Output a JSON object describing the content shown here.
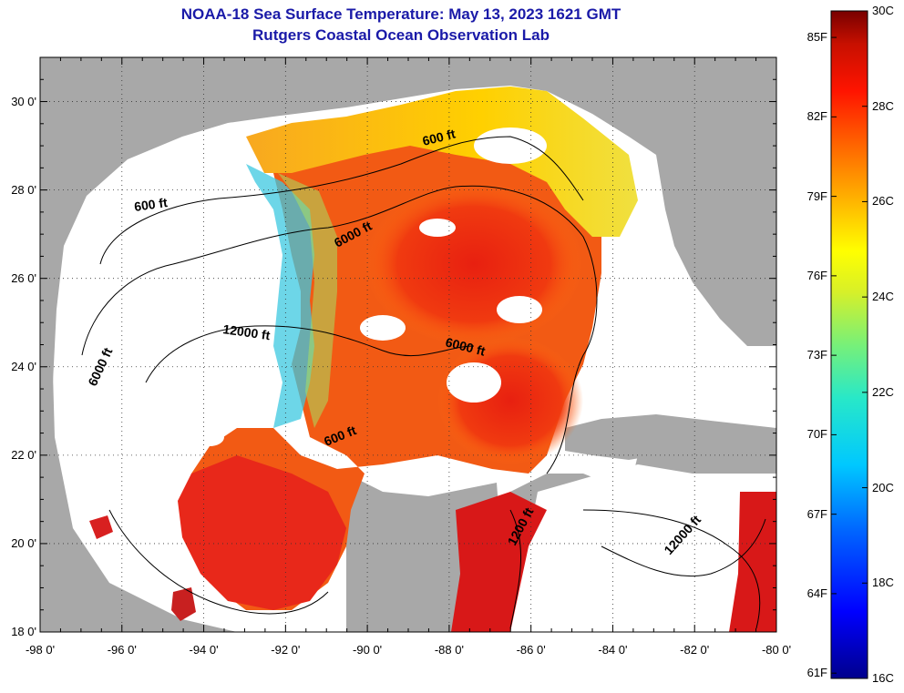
{
  "header": {
    "title": "NOAA-18 Sea Surface Temperature:  May 13, 2023 1621 GMT",
    "subtitle": "Rutgers Coastal Ocean Observation Lab"
  },
  "map": {
    "lat_labels": [
      "30 0'",
      "28 0'",
      "26 0'",
      "24 0'",
      "22 0'",
      "20 0'",
      "18 0'"
    ],
    "lon_labels": [
      "-98 0'",
      "-96 0'",
      "-94 0'",
      "-92 0'",
      "-90 0'",
      "-88 0'",
      "-86 0'",
      "-84 0'",
      "-82 0'",
      "-80 0'"
    ],
    "contour_labels": [
      "600 ft",
      "600 ft",
      "6000 ft",
      "12000 ft",
      "6000 ft",
      "6000 ft",
      "600 ft",
      "1200 ft",
      "12000 ft"
    ],
    "colors": {
      "land": "#a8a8a8",
      "clouds": "#ffffff"
    }
  },
  "colorbar": {
    "fahrenheit": [
      "85F",
      "82F",
      "79F",
      "76F",
      "73F",
      "70F",
      "67F",
      "64F",
      "61F"
    ],
    "celsius": [
      "30C",
      "28C",
      "26C",
      "24C",
      "22C",
      "20C",
      "18C",
      "16C"
    ],
    "range_c": [
      16,
      30
    ]
  }
}
